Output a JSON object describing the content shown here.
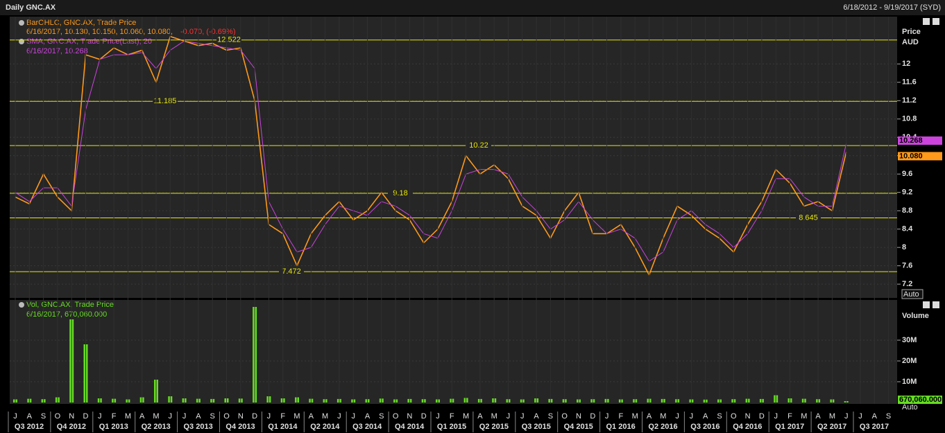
{
  "header": {
    "title": "Daily GNC.AX",
    "range": "6/18/2012 - 9/19/2017 (SYD)"
  },
  "chart_data": [
    {
      "type": "line",
      "y_title": "Price",
      "y_unit": "AUD",
      "scale_mode": "Auto",
      "categories": [
        "J",
        "A",
        "S",
        "O",
        "N",
        "D",
        "J",
        "F",
        "M",
        "A",
        "M",
        "J",
        "J",
        "A",
        "S",
        "O",
        "N",
        "D",
        "J",
        "F",
        "M",
        "A",
        "M",
        "J",
        "J",
        "A",
        "S",
        "O",
        "N",
        "D",
        "J",
        "F",
        "M",
        "A",
        "M",
        "J",
        "J",
        "A",
        "S",
        "O",
        "N",
        "D",
        "J",
        "F",
        "M",
        "A",
        "M",
        "J",
        "J",
        "A",
        "S",
        "O",
        "N",
        "D",
        "J",
        "F",
        "M",
        "A",
        "M",
        "J",
        "J",
        "A",
        "S"
      ],
      "quarters": [
        "Q3 2012",
        "Q4 2012",
        "Q1 2013",
        "Q2 2013",
        "Q3 2013",
        "Q4 2013",
        "Q1 2014",
        "Q2 2014",
        "Q3 2014",
        "Q4 2014",
        "Q1 2015",
        "Q2 2015",
        "Q3 2015",
        "Q4 2015",
        "Q1 2016",
        "Q2 2016",
        "Q3 2016",
        "Q4 2016",
        "Q1 2017",
        "Q2 2017",
        "Q3 2017"
      ],
      "ylim": [
        6.93,
        12.79
      ],
      "yticks": [
        7.2,
        7.6,
        8,
        8.4,
        8.8,
        9.2,
        9.6,
        10,
        10.4,
        10.8,
        11.2,
        11.6,
        12
      ],
      "grid": true,
      "series": [
        {
          "name": "BarOHLC, GNC.AX, Trade Price",
          "detail": "6/16/2017, 10.130, 10.150, 10.060, 10.080,",
          "change": "-0.070, (-0.69%)",
          "color": "#ff9a1a",
          "values": [
            9.1,
            8.95,
            9.6,
            9.1,
            8.8,
            12.2,
            12.1,
            12.35,
            12.2,
            12.3,
            11.6,
            12.6,
            12.5,
            12.4,
            12.45,
            12.3,
            12.35,
            11.2,
            8.5,
            8.3,
            7.6,
            8.3,
            8.7,
            9.0,
            8.6,
            8.8,
            9.2,
            8.8,
            8.6,
            8.1,
            8.4,
            9.0,
            10.0,
            9.6,
            9.8,
            9.5,
            8.9,
            8.7,
            8.2,
            8.8,
            9.2,
            8.3,
            8.3,
            8.5,
            8.0,
            7.4,
            8.2,
            8.9,
            8.7,
            8.4,
            8.2,
            7.9,
            8.5,
            9.0,
            9.7,
            9.4,
            8.9,
            9.0,
            8.8,
            10.08,
            null,
            null,
            null
          ],
          "last": {
            "value": 10.08,
            "label": "10.080"
          }
        },
        {
          "name": "SMA, GNC.AX, Trade Price(Last), 20",
          "detail": "6/16/2017, 10.268",
          "color": "#cc44dd",
          "values": [
            9.2,
            9.0,
            9.3,
            9.3,
            8.9,
            11.0,
            12.1,
            12.2,
            12.2,
            12.25,
            11.9,
            12.3,
            12.5,
            12.45,
            12.4,
            12.35,
            12.3,
            11.9,
            9.0,
            8.4,
            7.9,
            8.0,
            8.5,
            8.9,
            8.8,
            8.7,
            9.0,
            8.9,
            8.7,
            8.3,
            8.2,
            8.8,
            9.6,
            9.7,
            9.7,
            9.6,
            9.1,
            8.8,
            8.4,
            8.6,
            9.0,
            8.6,
            8.3,
            8.4,
            8.2,
            7.7,
            7.9,
            8.6,
            8.8,
            8.5,
            8.3,
            8.0,
            8.3,
            8.8,
            9.5,
            9.5,
            9.1,
            8.9,
            8.9,
            10.268,
            null,
            null,
            null
          ],
          "last": 10.268
        }
      ],
      "levels": [
        12.522,
        11.185,
        10.22,
        9.18,
        8.645,
        7.472
      ],
      "level_color": "#e8e800"
    },
    {
      "type": "bar",
      "y_title": "Volume",
      "scale_mode": "Auto",
      "ylim": [
        0,
        47000000
      ],
      "yticks": [
        {
          "value": 10000000,
          "label": "10M"
        },
        {
          "value": 20000000,
          "label": "20M"
        },
        {
          "value": 30000000,
          "label": "30M"
        }
      ],
      "grid": true,
      "series": [
        {
          "name": "Vol, GNC.AX, Trade Price",
          "detail": "6/16/2017, 670,060.000",
          "color": "#66dd22",
          "values": [
            1500000,
            1800000,
            1600000,
            2500000,
            40000000,
            28000000,
            2000000,
            1800000,
            1500000,
            2500000,
            11000000,
            3000000,
            2000000,
            1800000,
            1700000,
            2000000,
            1900000,
            46000000,
            3000000,
            2000000,
            2500000,
            1800000,
            1600000,
            1700000,
            1500000,
            1600000,
            1900000,
            1500000,
            1700000,
            1600000,
            1500000,
            1800000,
            2200000,
            1700000,
            2000000,
            1600000,
            1500000,
            2000000,
            1700000,
            1600000,
            1500000,
            1600000,
            1700000,
            1500000,
            1600000,
            1800000,
            1700000,
            1600000,
            1500000,
            1400000,
            1500000,
            1600000,
            1800000,
            1700000,
            3500000,
            2000000,
            1800000,
            1600000,
            1500000,
            670060,
            null,
            null,
            null
          ],
          "last": {
            "value": 670060,
            "label": "670,060.000"
          }
        }
      ]
    }
  ]
}
